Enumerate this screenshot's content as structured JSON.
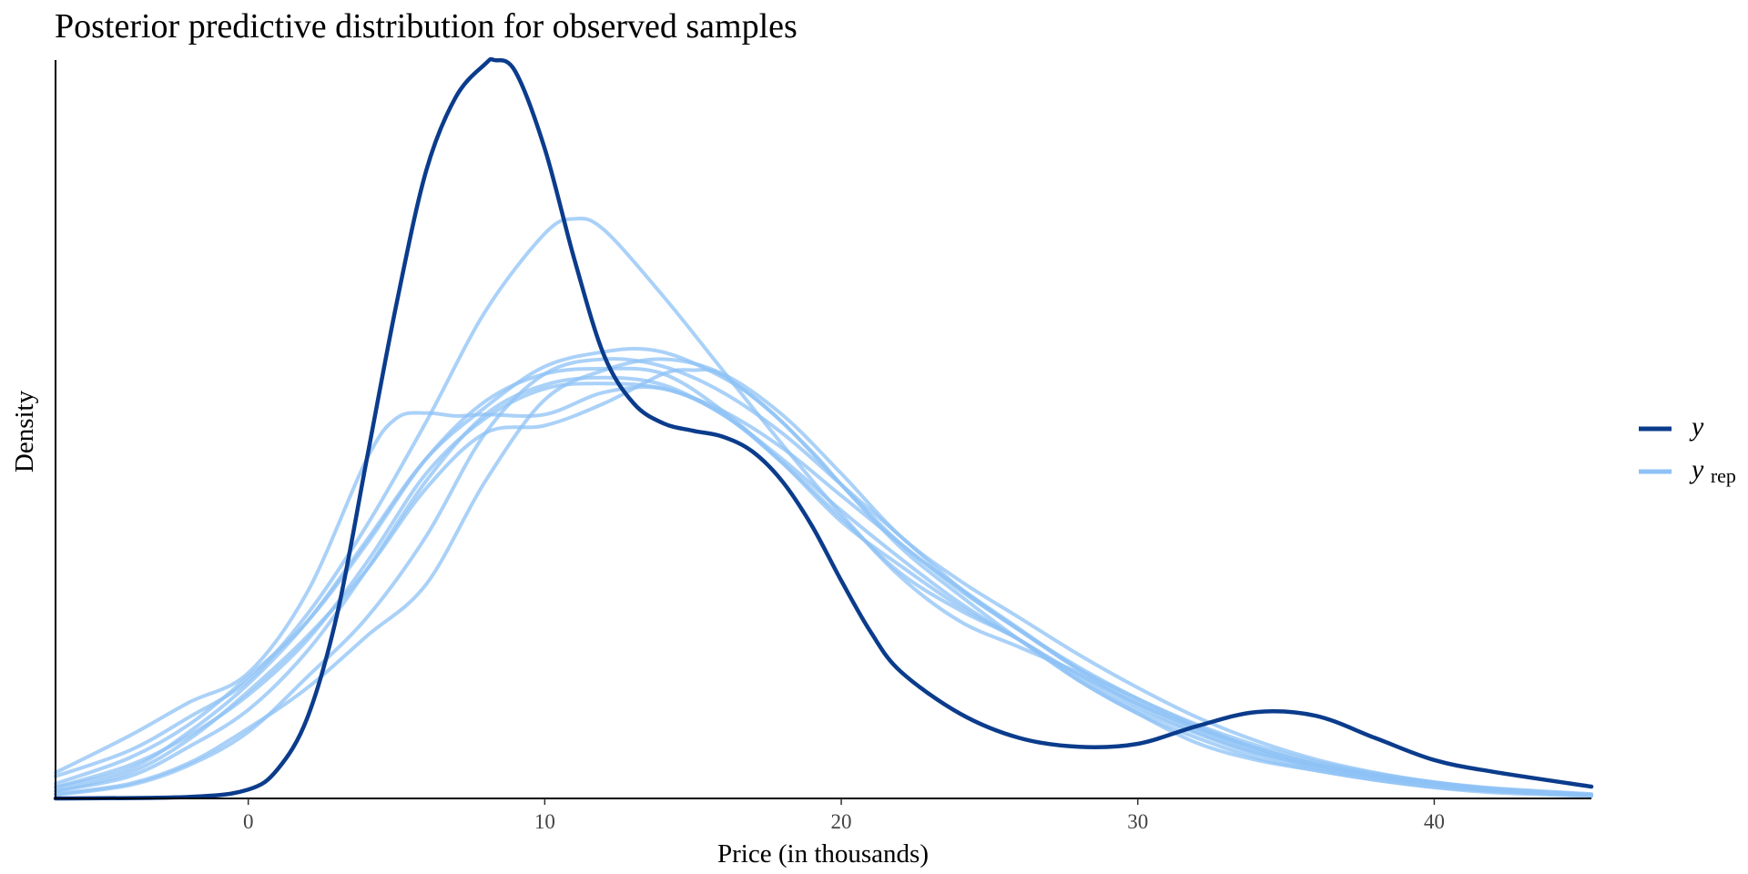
{
  "chart_data": {
    "type": "line",
    "title": "Posterior predictive distribution for observed samples",
    "xlabel": "Price (in thousands)",
    "ylabel": "Density",
    "xlim": [
      -6.5,
      45.3
    ],
    "ylim": [
      0,
      0.1
    ],
    "x_ticks": [
      0,
      10,
      20,
      30,
      40
    ],
    "y_ticks": [],
    "grid": false,
    "legend_position": "right",
    "legend": [
      {
        "main": "y",
        "sub": "",
        "color": "#0b3c8c"
      },
      {
        "main": "y",
        "sub": "rep",
        "color": "#8ec1f6"
      }
    ],
    "colors": {
      "y": "#0b3c8c",
      "yrep": "#8ec1f6"
    },
    "series": [
      {
        "name": "y",
        "x": [
          -6.5,
          -2,
          0,
          1,
          2,
          3,
          4,
          5,
          6,
          7,
          8,
          8.3,
          9,
          10,
          11,
          12,
          13,
          14,
          15,
          16,
          17,
          18,
          19,
          20,
          21,
          22,
          24,
          26,
          28,
          30,
          32,
          34,
          36,
          38,
          40,
          42,
          45.3
        ],
        "y": [
          0.0,
          0.0002,
          0.0012,
          0.004,
          0.011,
          0.025,
          0.046,
          0.067,
          0.085,
          0.095,
          0.0995,
          0.1,
          0.0985,
          0.088,
          0.073,
          0.06,
          0.0535,
          0.0508,
          0.0498,
          0.049,
          0.047,
          0.043,
          0.037,
          0.0295,
          0.0225,
          0.0172,
          0.0115,
          0.0082,
          0.007,
          0.0074,
          0.0098,
          0.0117,
          0.0112,
          0.0082,
          0.0052,
          0.0036,
          0.0016
        ]
      },
      {
        "name": "",
        "x": [
          -6.5,
          -4,
          -2,
          0,
          2,
          4,
          6,
          8,
          10,
          11,
          12,
          14,
          16,
          18,
          20,
          22,
          24,
          26,
          28,
          30,
          32,
          34,
          36,
          38,
          40,
          42,
          45.3
        ],
        "y": [
          0.003,
          0.0065,
          0.011,
          0.016,
          0.025,
          0.037,
          0.051,
          0.066,
          0.0765,
          0.0785,
          0.077,
          0.068,
          0.058,
          0.048,
          0.0385,
          0.03,
          0.024,
          0.0205,
          0.017,
          0.0125,
          0.009,
          0.0062,
          0.0045,
          0.003,
          0.002,
          0.0012,
          0.0005
        ]
      },
      {
        "name": "",
        "x": [
          -6.5,
          -4,
          -2,
          0,
          2,
          4,
          5,
          6,
          7,
          8,
          10,
          12,
          14,
          16,
          18,
          20,
          22,
          24,
          26,
          28,
          30,
          32,
          34,
          36,
          38,
          40,
          42,
          45.3
        ],
        "y": [
          0.0035,
          0.0085,
          0.013,
          0.017,
          0.028,
          0.046,
          0.0515,
          0.0522,
          0.0518,
          0.052,
          0.052,
          0.055,
          0.0555,
          0.052,
          0.0455,
          0.038,
          0.0305,
          0.0255,
          0.0215,
          0.016,
          0.0115,
          0.0075,
          0.0052,
          0.0038,
          0.0025,
          0.0015,
          0.001,
          0.0004
        ]
      },
      {
        "name": "",
        "x": [
          -6.5,
          -4,
          -2,
          0,
          2,
          4,
          6,
          8,
          10,
          12,
          13.5,
          15,
          17,
          19,
          20,
          22,
          24,
          26,
          28,
          30,
          32,
          34,
          36,
          38,
          40,
          42,
          45.3
        ],
        "y": [
          0.0015,
          0.004,
          0.009,
          0.0155,
          0.024,
          0.035,
          0.046,
          0.053,
          0.0585,
          0.0605,
          0.0608,
          0.059,
          0.0545,
          0.047,
          0.0425,
          0.034,
          0.0275,
          0.0215,
          0.016,
          0.0115,
          0.0082,
          0.0055,
          0.0038,
          0.0025,
          0.0015,
          0.0008,
          0.0003
        ]
      },
      {
        "name": "",
        "x": [
          -6.5,
          -4,
          -2,
          0,
          2,
          4,
          6,
          8,
          10,
          12,
          14,
          15,
          16,
          18,
          20,
          22,
          24,
          26,
          28,
          30,
          32,
          34,
          36,
          38,
          40,
          42,
          45.3
        ],
        "y": [
          0.001,
          0.0035,
          0.008,
          0.0145,
          0.022,
          0.031,
          0.042,
          0.0495,
          0.0505,
          0.0535,
          0.0575,
          0.058,
          0.0573,
          0.051,
          0.0425,
          0.0345,
          0.0285,
          0.023,
          0.0175,
          0.013,
          0.0095,
          0.0065,
          0.0042,
          0.0028,
          0.0018,
          0.001,
          0.0004
        ]
      },
      {
        "name": "",
        "x": [
          -6.5,
          -4,
          -2,
          0,
          2,
          4,
          6,
          8,
          10,
          12,
          14,
          16,
          18,
          20,
          22,
          24,
          26,
          28,
          30,
          32,
          34,
          36,
          38,
          40,
          42,
          45.3
        ],
        "y": [
          0.002,
          0.0055,
          0.01,
          0.0165,
          0.024,
          0.0345,
          0.046,
          0.0538,
          0.0575,
          0.0582,
          0.0575,
          0.0525,
          0.0455,
          0.0375,
          0.0315,
          0.026,
          0.0215,
          0.0165,
          0.012,
          0.0088,
          0.006,
          0.0042,
          0.003,
          0.002,
          0.0012,
          0.0005
        ]
      },
      {
        "name": "",
        "x": [
          -6.5,
          -4,
          -2,
          0,
          2,
          4,
          6,
          8,
          10,
          12,
          14,
          16,
          18,
          20,
          22,
          24,
          26,
          28,
          30,
          32,
          34,
          36,
          38,
          40,
          42,
          45.3
        ],
        "y": [
          0.001,
          0.003,
          0.007,
          0.012,
          0.02,
          0.031,
          0.043,
          0.052,
          0.056,
          0.057,
          0.056,
          0.052,
          0.046,
          0.039,
          0.0325,
          0.0265,
          0.0215,
          0.0168,
          0.0128,
          0.0095,
          0.0068,
          0.0047,
          0.0032,
          0.0021,
          0.0013,
          0.0005
        ]
      },
      {
        "name": "",
        "x": [
          -6.5,
          -4,
          -2,
          0,
          2,
          4,
          6,
          8,
          10,
          12,
          14,
          16,
          18,
          20,
          22,
          24,
          26,
          28,
          30,
          32,
          34,
          36,
          38,
          40,
          42,
          45.3
        ],
        "y": [
          0.0015,
          0.0045,
          0.0085,
          0.014,
          0.0215,
          0.032,
          0.044,
          0.0515,
          0.0555,
          0.0562,
          0.0555,
          0.0525,
          0.0475,
          0.041,
          0.0345,
          0.0282,
          0.0228,
          0.0175,
          0.0135,
          0.01,
          0.0072,
          0.005,
          0.0034,
          0.0022,
          0.0014,
          0.0006
        ]
      },
      {
        "name": "",
        "x": [
          -6.5,
          -4,
          -2,
          0,
          2,
          4,
          6,
          8,
          10,
          12,
          14,
          16,
          18,
          20,
          22,
          24,
          26,
          28,
          30,
          32,
          34,
          36,
          38,
          40,
          42,
          45.3
        ],
        "y": [
          0.0005,
          0.0018,
          0.0045,
          0.009,
          0.0165,
          0.0245,
          0.0355,
          0.0495,
          0.0575,
          0.0595,
          0.0585,
          0.055,
          0.0495,
          0.0425,
          0.0355,
          0.0285,
          0.0228,
          0.0178,
          0.0135,
          0.0098,
          0.0068,
          0.0046,
          0.0031,
          0.002,
          0.0012,
          0.0005
        ]
      },
      {
        "name": "",
        "x": [
          -6.5,
          -4,
          -2,
          0,
          2,
          4,
          6,
          8,
          10,
          12,
          14,
          16,
          18,
          20,
          22,
          24,
          26,
          28,
          30,
          32,
          34,
          36,
          38,
          40,
          42,
          45.3
        ],
        "y": [
          0.0006,
          0.002,
          0.0048,
          0.0095,
          0.015,
          0.022,
          0.029,
          0.043,
          0.054,
          0.058,
          0.0595,
          0.0575,
          0.052,
          0.044,
          0.0355,
          0.0295,
          0.0245,
          0.0195,
          0.015,
          0.011,
          0.0078,
          0.0053,
          0.0035,
          0.0022,
          0.0013,
          0.0005
        ]
      }
    ]
  }
}
